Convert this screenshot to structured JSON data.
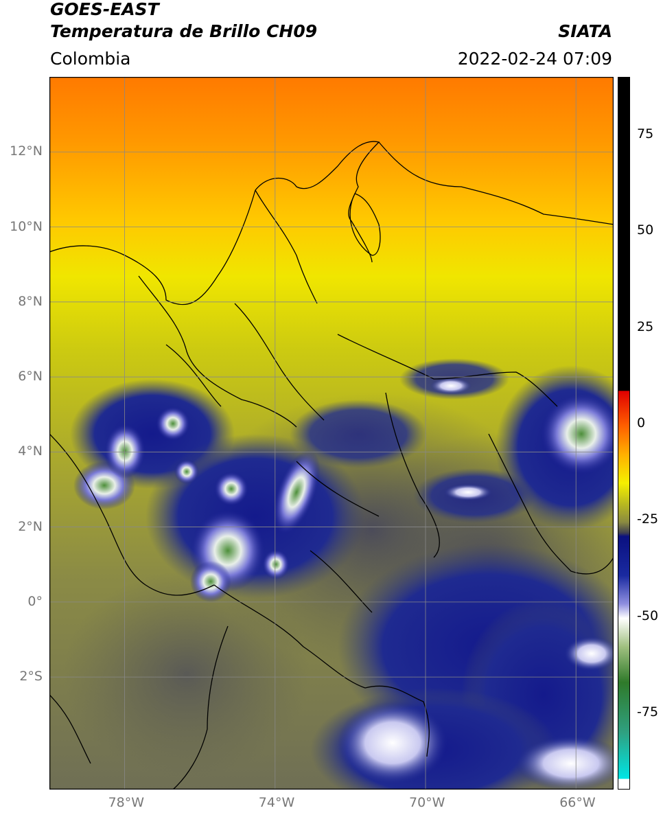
{
  "header": {
    "satellite": "GOES-EAST",
    "product": "Temperatura de Brillo CH09",
    "agency": "SIATA",
    "region": "Colombia",
    "timestamp": "2022-02-24 07:09"
  },
  "map": {
    "lon_range": [
      -80,
      -65
    ],
    "lat_range": [
      -5,
      14
    ],
    "lat_ticks": [
      "12°N",
      "10°N",
      "8°N",
      "6°N",
      "4°N",
      "2°N",
      "0°",
      "2°S"
    ],
    "lat_tick_values": [
      12,
      10,
      8,
      6,
      4,
      2,
      0,
      -2
    ],
    "lon_ticks": [
      "78°W",
      "74°W",
      "70°W",
      "66°W"
    ],
    "lon_tick_values": [
      -78,
      -74,
      -70,
      -66
    ],
    "grid": true
  },
  "colorbar": {
    "range": [
      -95,
      90
    ],
    "tick_labels": [
      "75",
      "50",
      "25",
      "0",
      "-25",
      "-50",
      "-75"
    ],
    "tick_values": [
      75,
      50,
      25,
      0,
      -25,
      -50,
      -75
    ]
  }
}
